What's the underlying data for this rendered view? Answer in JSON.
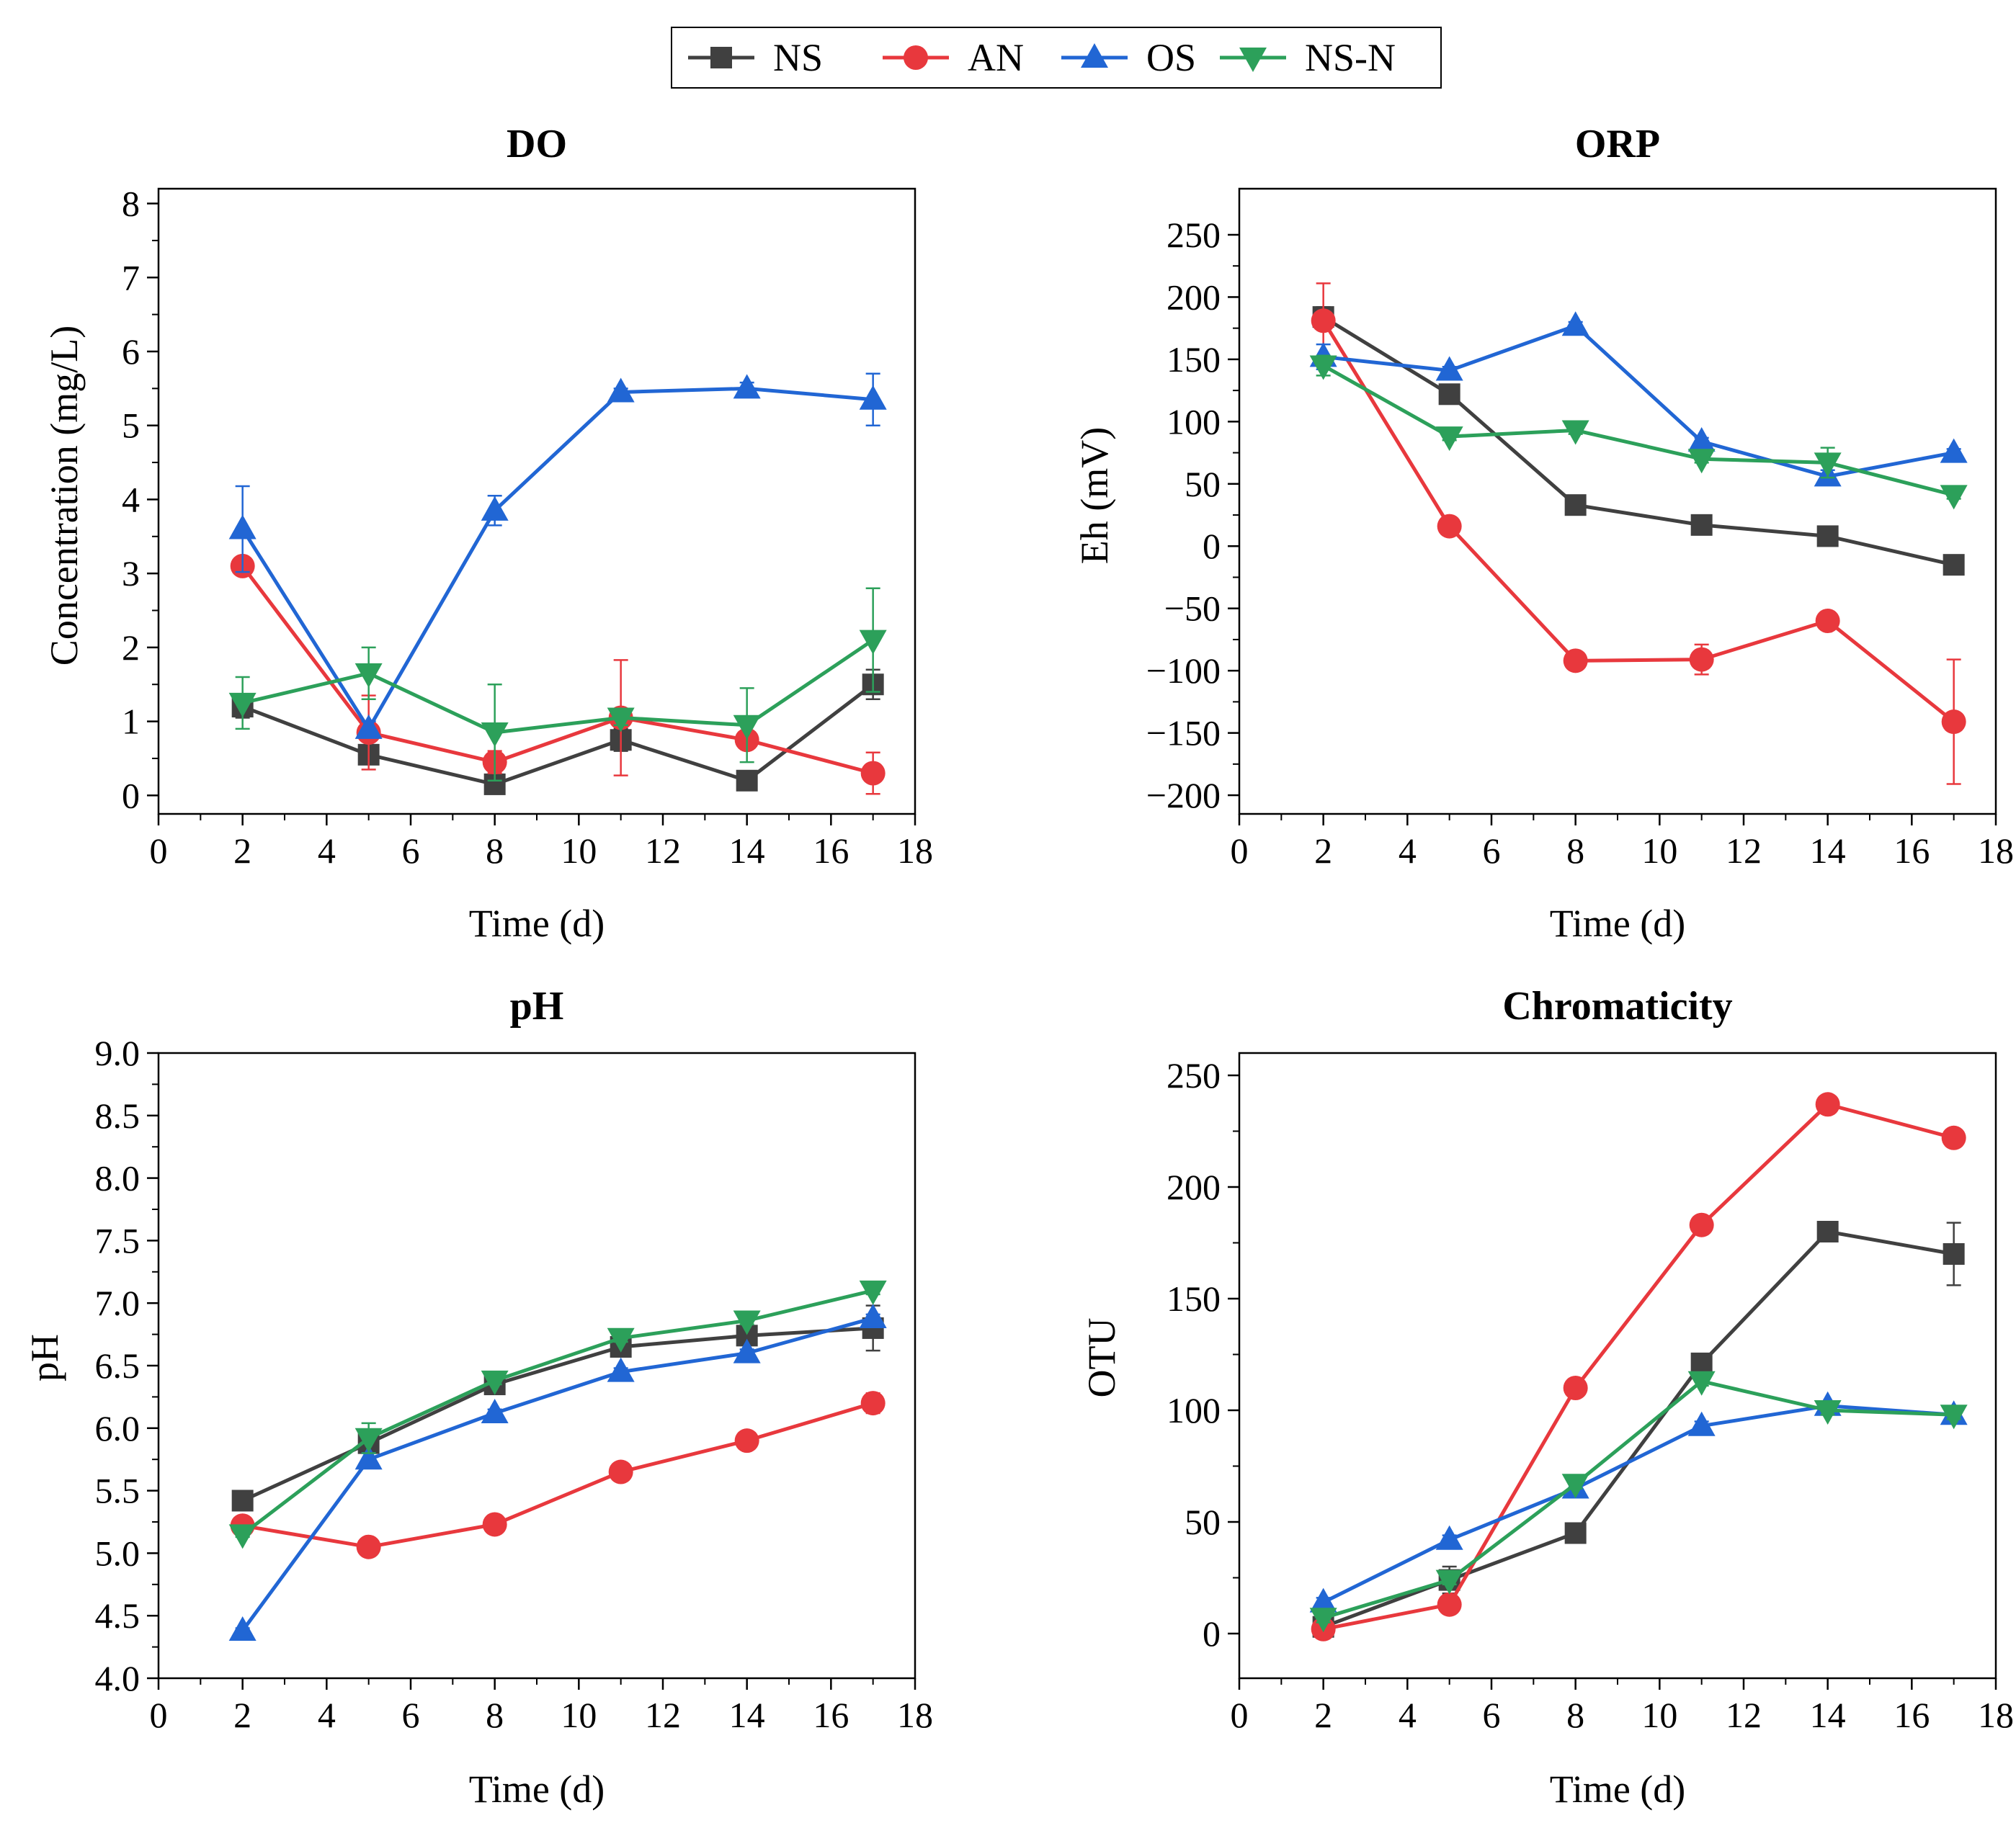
{
  "legend": {
    "items": [
      {
        "name": "NS",
        "color": "#404040",
        "marker": "square"
      },
      {
        "name": "AN",
        "color": "#e8383d",
        "marker": "circle"
      },
      {
        "name": "OS",
        "color": "#2166d4",
        "marker": "triangle-up"
      },
      {
        "name": "NS-N",
        "color": "#2ca05a",
        "marker": "triangle-down"
      }
    ]
  },
  "chart_data": [
    {
      "type": "line",
      "title": "DO",
      "xlabel": "Time (d)",
      "ylabel": "Concentration (mg/L)",
      "xlim": [
        0,
        18
      ],
      "ylim": [
        -0.25,
        8.2
      ],
      "xticks": [
        0,
        2,
        4,
        6,
        8,
        10,
        12,
        14,
        16,
        18
      ],
      "xtick_labels": [
        "0",
        "2",
        "4",
        "6",
        "8",
        "10",
        "12",
        "14",
        "16",
        "18"
      ],
      "yticks": [
        0,
        1,
        2,
        3,
        4,
        5,
        6,
        7,
        8
      ],
      "ytick_labels": [
        "0",
        "1",
        "2",
        "3",
        "4",
        "5",
        "6",
        "7",
        "8"
      ],
      "x": [
        2,
        5,
        8,
        11,
        14,
        17
      ],
      "series": [
        {
          "name": "NS",
          "values": [
            1.2,
            0.55,
            0.15,
            0.75,
            0.2,
            1.5
          ],
          "errors": [
            0.15,
            0.1,
            0.05,
            0.15,
            0.05,
            0.2
          ]
        },
        {
          "name": "AN",
          "values": [
            3.1,
            0.85,
            0.45,
            1.05,
            0.75,
            0.3
          ],
          "errors": [
            0.1,
            0.5,
            0.15,
            0.78,
            0.05,
            0.28
          ]
        },
        {
          "name": "OS",
          "values": [
            3.6,
            0.9,
            3.85,
            5.45,
            5.5,
            5.35
          ],
          "errors": [
            0.58,
            0.1,
            0.2,
            0.05,
            0.08,
            0.35
          ]
        },
        {
          "name": "NS-N",
          "values": [
            1.25,
            1.65,
            0.85,
            1.05,
            0.95,
            2.1
          ],
          "errors": [
            0.35,
            0.35,
            0.65,
            0.1,
            0.5,
            0.7
          ]
        }
      ]
    },
    {
      "type": "line",
      "title": "ORP",
      "xlabel": "Time (d)",
      "ylabel": "Eh (mV)",
      "xlim": [
        0,
        18
      ],
      "ylim": [
        -215,
        287
      ],
      "xticks": [
        0,
        2,
        4,
        6,
        8,
        10,
        12,
        14,
        16,
        18
      ],
      "xtick_labels": [
        "0",
        "2",
        "4",
        "6",
        "8",
        "10",
        "12",
        "14",
        "16",
        "18"
      ],
      "yticks": [
        -200,
        -150,
        -100,
        -50,
        0,
        50,
        100,
        150,
        200,
        250
      ],
      "ytick_labels": [
        "−200",
        "−150",
        "−100",
        "−50",
        "0",
        "50",
        "100",
        "150",
        "200",
        "250"
      ],
      "x": [
        2,
        5,
        8,
        11,
        14,
        17
      ],
      "series": [
        {
          "name": "NS",
          "values": [
            184,
            122,
            33,
            17,
            8,
            -15
          ],
          "errors": [
            8,
            5,
            4,
            3,
            3,
            5
          ]
        },
        {
          "name": "AN",
          "values": [
            181,
            16,
            -92,
            -91,
            -60,
            -141
          ],
          "errors": [
            30,
            3,
            6,
            12,
            4,
            50
          ]
        },
        {
          "name": "OS",
          "values": [
            152,
            141,
            177,
            84,
            56,
            75
          ],
          "errors": [
            10,
            3,
            3,
            3,
            5,
            3
          ]
        },
        {
          "name": "NS-N",
          "values": [
            145,
            88,
            93,
            70,
            67,
            41
          ],
          "errors": [
            8,
            3,
            3,
            3,
            12,
            3
          ]
        }
      ]
    },
    {
      "type": "line",
      "title": "pH",
      "xlabel": "Time (d)",
      "ylabel": "pH",
      "xlim": [
        0,
        18
      ],
      "ylim": [
        4.0,
        9.0
      ],
      "xticks": [
        0,
        2,
        4,
        6,
        8,
        10,
        12,
        14,
        16,
        18
      ],
      "xtick_labels": [
        "0",
        "2",
        "4",
        "6",
        "8",
        "10",
        "12",
        "14",
        "16",
        "18"
      ],
      "yticks": [
        4.0,
        4.5,
        5.0,
        5.5,
        6.0,
        6.5,
        7.0,
        7.5,
        8.0,
        8.5,
        9.0
      ],
      "ytick_labels": [
        "4.0",
        "4.5",
        "5.0",
        "5.5",
        "6.0",
        "6.5",
        "7.0",
        "7.5",
        "8.0",
        "8.5",
        "9.0"
      ],
      "x": [
        2,
        5,
        8,
        11,
        14,
        17
      ],
      "series": [
        {
          "name": "NS",
          "values": [
            5.42,
            5.88,
            6.35,
            6.65,
            6.74,
            6.8
          ],
          "errors": [
            0.02,
            0.05,
            0.03,
            0.03,
            0.03,
            0.18
          ]
        },
        {
          "name": "AN",
          "values": [
            5.22,
            5.05,
            5.23,
            5.65,
            5.9,
            6.2
          ],
          "errors": [
            0.02,
            0.02,
            0.02,
            0.02,
            0.02,
            0.08
          ]
        },
        {
          "name": "OS",
          "values": [
            4.38,
            5.75,
            6.12,
            6.45,
            6.6,
            6.88
          ],
          "errors": [
            0.02,
            0.05,
            0.03,
            0.03,
            0.03,
            0.03
          ]
        },
        {
          "name": "NS-N",
          "values": [
            5.15,
            5.92,
            6.38,
            6.72,
            6.86,
            7.1
          ],
          "errors": [
            0.02,
            0.12,
            0.03,
            0.03,
            0.03,
            0.03
          ]
        }
      ]
    },
    {
      "type": "line",
      "title": "Chromaticity",
      "xlabel": "Time (d)",
      "ylabel": "OTU",
      "xlim": [
        0,
        18
      ],
      "ylim": [
        -20,
        260
      ],
      "xticks": [
        0,
        2,
        4,
        6,
        8,
        10,
        12,
        14,
        16,
        18
      ],
      "xtick_labels": [
        "0",
        "2",
        "4",
        "6",
        "8",
        "10",
        "12",
        "14",
        "16",
        "18"
      ],
      "yticks": [
        0,
        50,
        100,
        150,
        200,
        250
      ],
      "ytick_labels": [
        "0",
        "50",
        "100",
        "150",
        "200",
        "250"
      ],
      "x": [
        2,
        5,
        8,
        11,
        14,
        17
      ],
      "series": [
        {
          "name": "NS",
          "values": [
            3,
            24,
            45,
            121,
            180,
            170
          ],
          "errors": [
            2,
            6,
            2,
            2,
            2,
            14
          ]
        },
        {
          "name": "AN",
          "values": [
            2,
            13,
            110,
            183,
            237,
            222
          ],
          "errors": [
            1,
            2,
            2,
            2,
            2,
            2
          ]
        },
        {
          "name": "OS",
          "values": [
            14,
            42,
            65,
            93,
            102,
            98
          ],
          "errors": [
            2,
            2,
            2,
            2,
            2,
            2
          ]
        },
        {
          "name": "NS-N",
          "values": [
            7,
            24,
            67,
            113,
            100,
            98
          ],
          "errors": [
            2,
            2,
            2,
            2,
            2,
            2
          ]
        }
      ]
    }
  ]
}
